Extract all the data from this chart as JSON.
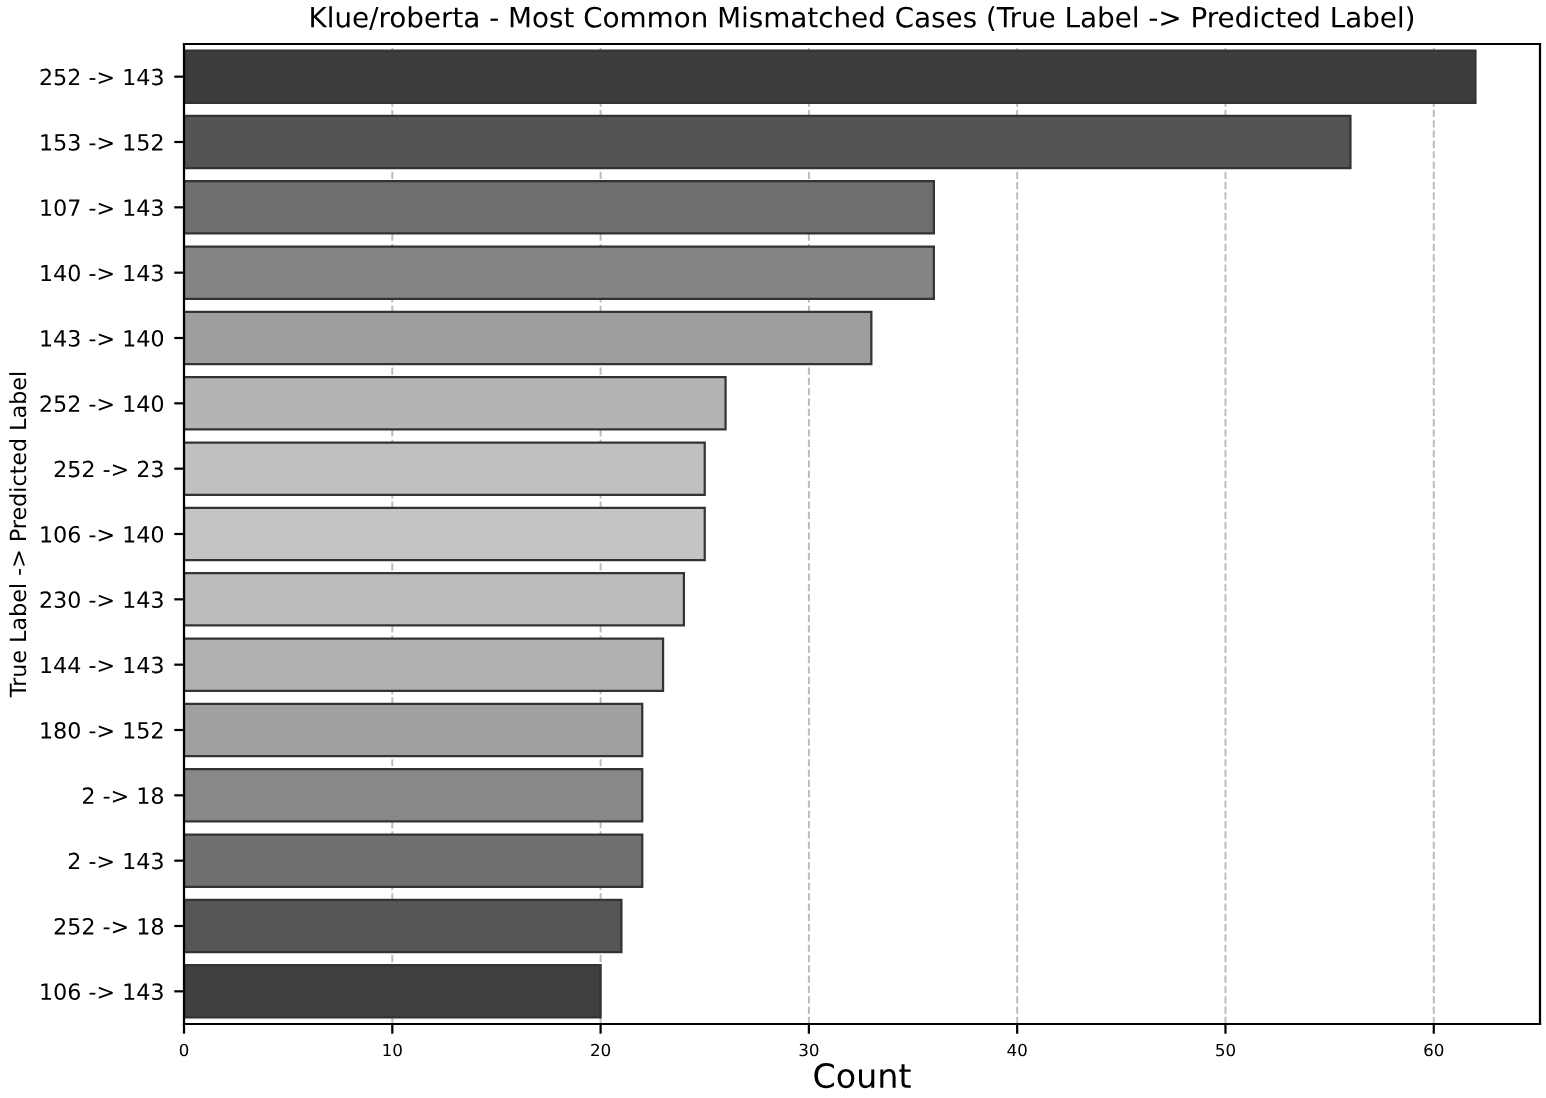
{
  "chart_data": {
    "type": "bar",
    "orientation": "horizontal",
    "title": "Klue/roberta - Most Common Mismatched Cases (True Label -> Predicted Label)",
    "xlabel": "Count",
    "ylabel": "True Label -> Predicted Label",
    "categories": [
      "252 -> 143",
      "153 -> 152",
      "107 -> 143",
      "140 -> 143",
      "143 -> 140",
      "252 -> 140",
      "252 -> 23",
      "106 -> 140",
      "230 -> 143",
      "144 -> 143",
      "180 -> 152",
      "2 -> 18",
      "2 -> 143",
      "252 -> 18",
      "106 -> 143"
    ],
    "values": [
      62,
      56,
      36,
      36,
      33,
      26,
      25,
      25,
      24,
      23,
      22,
      22,
      22,
      21,
      20
    ],
    "colors": [
      "#3d3d3d",
      "#545454",
      "#6e6e6e",
      "#858585",
      "#9e9e9e",
      "#b4b4b4",
      "#c0c0c0",
      "#c4c4c4",
      "#bcbcbc",
      "#b0b0b0",
      "#a0a0a0",
      "#888888",
      "#707070",
      "#555555",
      "#404040"
    ],
    "xlim": [
      0,
      65.1
    ],
    "xticks": [
      0,
      10,
      20,
      30,
      40,
      50,
      60
    ],
    "grid": "x",
    "line_style": "dashed"
  }
}
